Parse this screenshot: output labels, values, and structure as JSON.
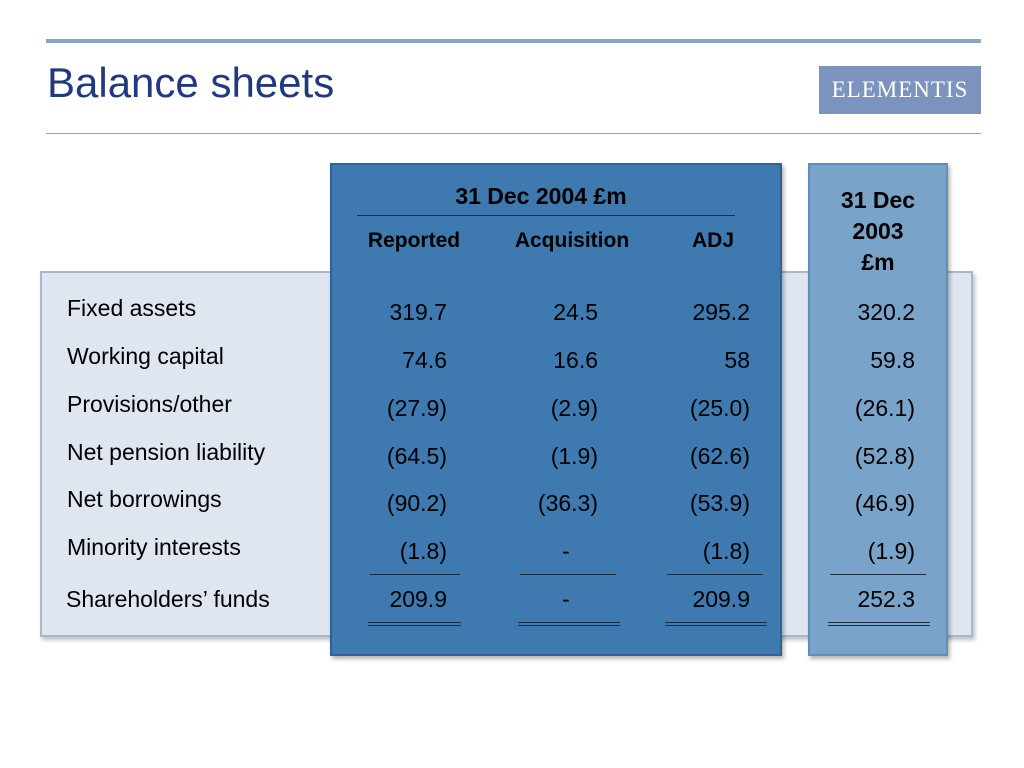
{
  "title": "Balance sheets",
  "logo_text": "ELEMENTIS",
  "colors": {
    "title": "#1f3a80",
    "panel_2004": "#3e7ab0",
    "panel_2003": "#7aa3c9",
    "back_panel": "#dfe6f0",
    "logo_bg": "#7b93bd"
  },
  "header_2004": "31 Dec 2004 £m",
  "header_2003": [
    "31 Dec",
    "2003",
    "£m"
  ],
  "columns": [
    "Reported",
    "Acquisition",
    "ADJ"
  ],
  "rows": [
    {
      "label": "Fixed assets",
      "reported": "319.7",
      "acquisition": "24.5",
      "adj": "295.2",
      "dec2003": "320.2"
    },
    {
      "label": "Working capital",
      "reported": "74.6",
      "acquisition": "16.6",
      "adj": "58",
      "dec2003": "59.8"
    },
    {
      "label": "Provisions/other",
      "reported": "(27.9)",
      "acquisition": "(2.9)",
      "adj": "(25.0)",
      "dec2003": "(26.1)"
    },
    {
      "label": "Net pension liability",
      "reported": "(64.5)",
      "acquisition": "(1.9)",
      "adj": "(62.6)",
      "dec2003": "(52.8)"
    },
    {
      "label": "Net borrowings",
      "reported": "(90.2)",
      "acquisition": "(36.3)",
      "adj": "(53.9)",
      "dec2003": "(46.9)"
    },
    {
      "label": "Minority interests",
      "reported": "(1.8)",
      "acquisition": "-",
      "adj": "(1.8)",
      "dec2003": "(1.9)"
    }
  ],
  "total": {
    "label": "Shareholders’ funds",
    "reported": "209.9",
    "acquisition": "-",
    "adj": "209.9",
    "dec2003": "252.3"
  }
}
